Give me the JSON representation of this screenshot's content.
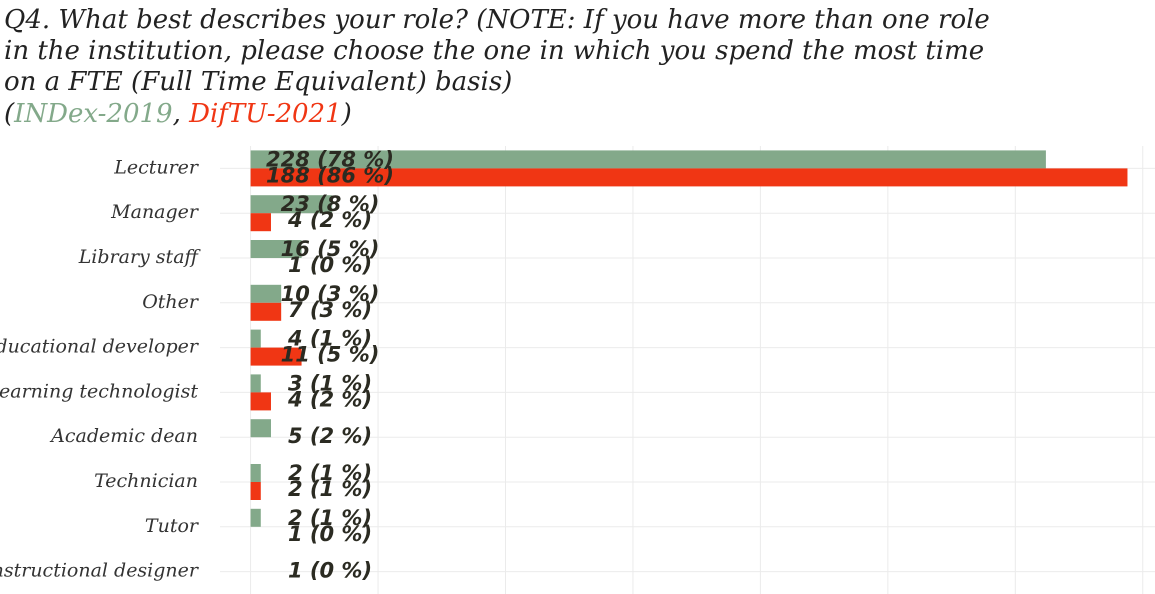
{
  "chart_data": {
    "type": "bar",
    "orientation": "horizontal",
    "title": [
      "Q4. What best describes your role? (NOTE: If you have more than one role",
      "in the institution, please choose the one in which you spend the most time",
      "on a FTE (Full Time Equivalent) basis)"
    ],
    "categories": [
      "Lecturer",
      "Manager",
      "Library staff",
      "Other",
      "Educational developer",
      "Learning technologist",
      "Academic dean",
      "Technician",
      "Tutor",
      "Instructional designer"
    ],
    "series": [
      {
        "name": "INDex-2019",
        "color": "#83a98a",
        "values": [
          78,
          8,
          5,
          3,
          1,
          1,
          2,
          1,
          1,
          null
        ],
        "value_labels": [
          "228 (78 %)",
          "23 (8 %)",
          "16 (5 %)",
          "10 (3 %)",
          "4 (1 %)",
          "3 (1 %)",
          "5 (2 %)",
          "2 (1 %)",
          "2 (1 %)",
          null
        ]
      },
      {
        "name": "DifTU-2021",
        "color": "#f03614",
        "values": [
          86,
          2,
          0,
          3,
          5,
          2,
          null,
          1,
          0,
          0
        ],
        "value_labels": [
          "188 (86 %)",
          "4 (2 %)",
          "1 (0 %)",
          "7 (3 %)",
          "11 (5 %)",
          "4 (2 %)",
          null,
          "2 (1 %)",
          "1 (0 %)",
          "1 (0 %)"
        ]
      }
    ],
    "xlim": [
      -3,
      88.7
    ],
    "xticks": [
      0,
      12.5,
      25,
      37.5,
      50,
      62.5,
      75,
      87.5
    ],
    "grid": true
  }
}
